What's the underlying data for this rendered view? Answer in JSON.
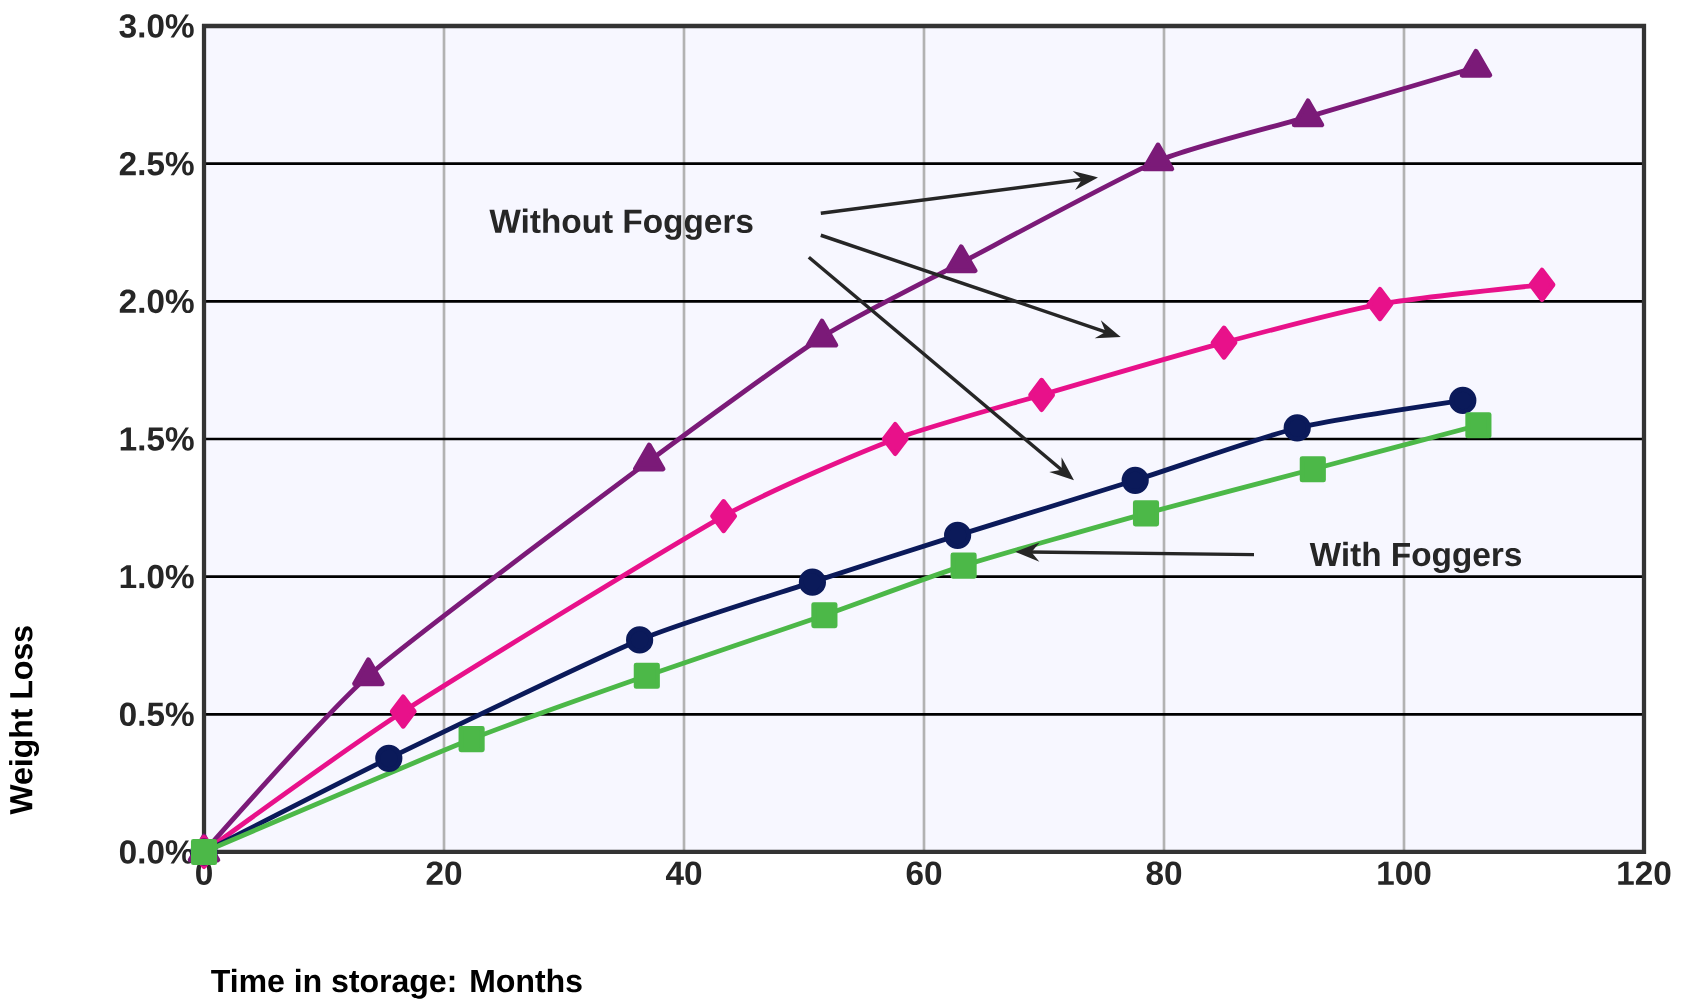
{
  "chart_data": {
    "type": "line",
    "xlabel": "Time in storage: Months",
    "ylabel": "Weight Loss",
    "xlim": [
      0,
      120
    ],
    "xticks": [
      0,
      20,
      40,
      60,
      80,
      100,
      120
    ],
    "ylim": [
      0,
      3
    ],
    "yticks": [
      {
        "value": 0,
        "label": "0.0%"
      },
      {
        "value": 0.5,
        "label": "0.5%"
      },
      {
        "value": 1,
        "label": "1.0%"
      },
      {
        "value": 1.5,
        "label": "1.5%"
      },
      {
        "value": 2,
        "label": "2.0%"
      },
      {
        "value": 2.5,
        "label": "2.5%"
      },
      {
        "value": 3,
        "label": "3.0%"
      }
    ],
    "grid": true,
    "line_style": "solid",
    "annotations": [
      "Without Foggers",
      "With Foggers"
    ],
    "series": [
      {
        "color": "#7b1a78",
        "marker": "triangle",
        "x": [
          0,
          13.7,
          37.1,
          51.5,
          63.1,
          79.5,
          92.0,
          106.0
        ],
        "values": [
          0,
          0.64,
          1.42,
          1.87,
          2.14,
          2.51,
          2.67,
          2.85
        ]
      },
      {
        "color": "#e8118a",
        "marker": "diamond",
        "x": [
          0,
          16.6,
          43.3,
          57.6,
          69.8,
          85.0,
          98.0,
          111.5
        ],
        "values": [
          0,
          0.51,
          1.22,
          1.5,
          1.66,
          1.85,
          1.99,
          2.06
        ]
      },
      {
        "color": "#0b1a5a",
        "marker": "circle",
        "x": [
          0,
          15.4,
          36.3,
          50.7,
          62.8,
          77.6,
          91.1,
          104.9
        ],
        "values": [
          0,
          0.34,
          0.77,
          0.98,
          1.15,
          1.35,
          1.54,
          1.64
        ]
      },
      {
        "color": "#4cb848",
        "marker": "square",
        "x": [
          0,
          22.3,
          36.9,
          51.7,
          63.3,
          78.5,
          92.4,
          106.2
        ],
        "values": [
          0,
          0.41,
          0.64,
          0.86,
          1.04,
          1.23,
          1.39,
          1.55
        ]
      }
    ]
  }
}
